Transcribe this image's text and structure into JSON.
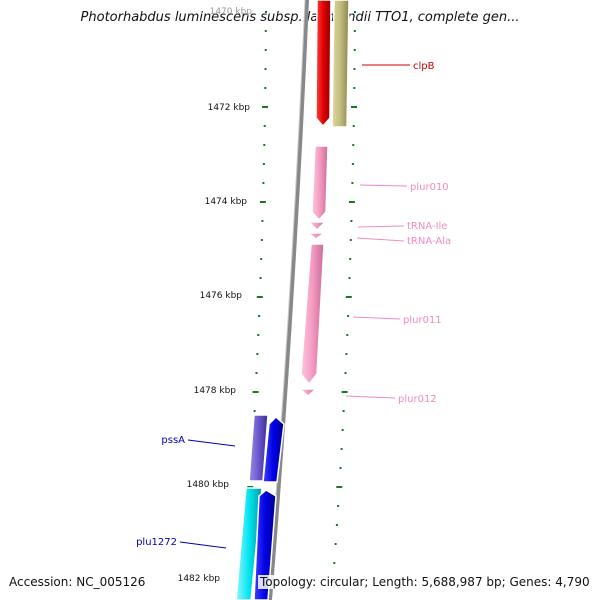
{
  "title": "Photorhabdus luminescens subsp. laumondii TTO1, complete gen...",
  "accession": "Accession: NC_005126",
  "summary": "Topology: circular; Length: 5,688,987 bp; Genes: 4,790",
  "colors": {
    "backbone": "#8a8a8a",
    "ticks": "#1a7a1a",
    "clpB": "#e00000",
    "tan": "#c2bd7e",
    "pink": "#f49ac1",
    "trna": "#f49ac1",
    "purple": "#6a58cc",
    "blue": "#0000e6",
    "cyan": "#00e5f0"
  },
  "scale": {
    "major_labels": [
      "1470 kbp",
      "1472 kbp",
      "1474 kbp",
      "1476 kbp",
      "1478 kbp",
      "1480 kbp",
      "1482 kbp"
    ]
  },
  "features": [
    {
      "label": "clpB",
      "color": "#cc0000"
    },
    {
      "label": "plur010",
      "color": "#f08cc0"
    },
    {
      "label": "tRNA-Ile",
      "color": "#f08cc0"
    },
    {
      "label": "tRNA-Ala",
      "color": "#f08cc0"
    },
    {
      "label": "plur011",
      "color": "#f08cc0"
    },
    {
      "label": "plur012",
      "color": "#f08cc0"
    },
    {
      "label": "pssA",
      "color": "#0000b0"
    },
    {
      "label": "plu1272",
      "color": "#0000b0"
    }
  ]
}
